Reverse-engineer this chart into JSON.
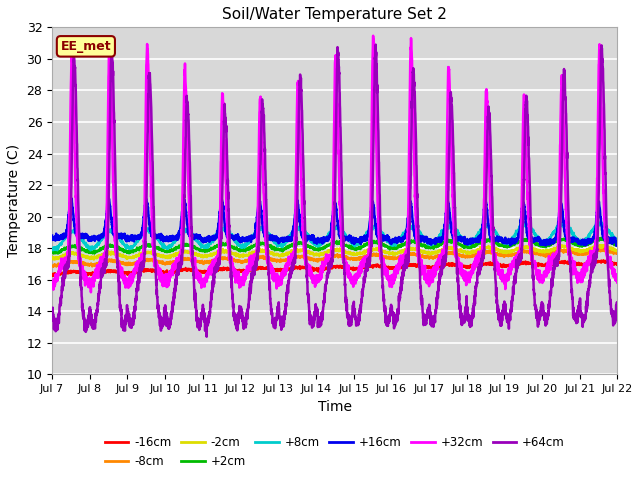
{
  "title": "Soil/Water Temperature Set 2",
  "xlabel": "Time",
  "ylabel": "Temperature (C)",
  "ylim": [
    10,
    32
  ],
  "yticks": [
    10,
    12,
    14,
    16,
    18,
    20,
    22,
    24,
    26,
    28,
    30,
    32
  ],
  "num_days": 15,
  "plot_bg_color": "#d8d8d8",
  "annotation_text": "EE_met",
  "annotation_bg": "#ffff99",
  "annotation_border": "#8b0000",
  "colors": {
    "-16cm": "#ff0000",
    "-8cm": "#ff8800",
    "-2cm": "#dddd00",
    "+2cm": "#00bb00",
    "+8cm": "#00cccc",
    "+16cm": "#0000ee",
    "+32cm": "#ff00ff",
    "+64cm": "#9900bb"
  },
  "legend_order": [
    "-16cm",
    "-8cm",
    "-2cm",
    "+2cm",
    "+8cm",
    "+16cm",
    "+32cm",
    "+64cm"
  ]
}
